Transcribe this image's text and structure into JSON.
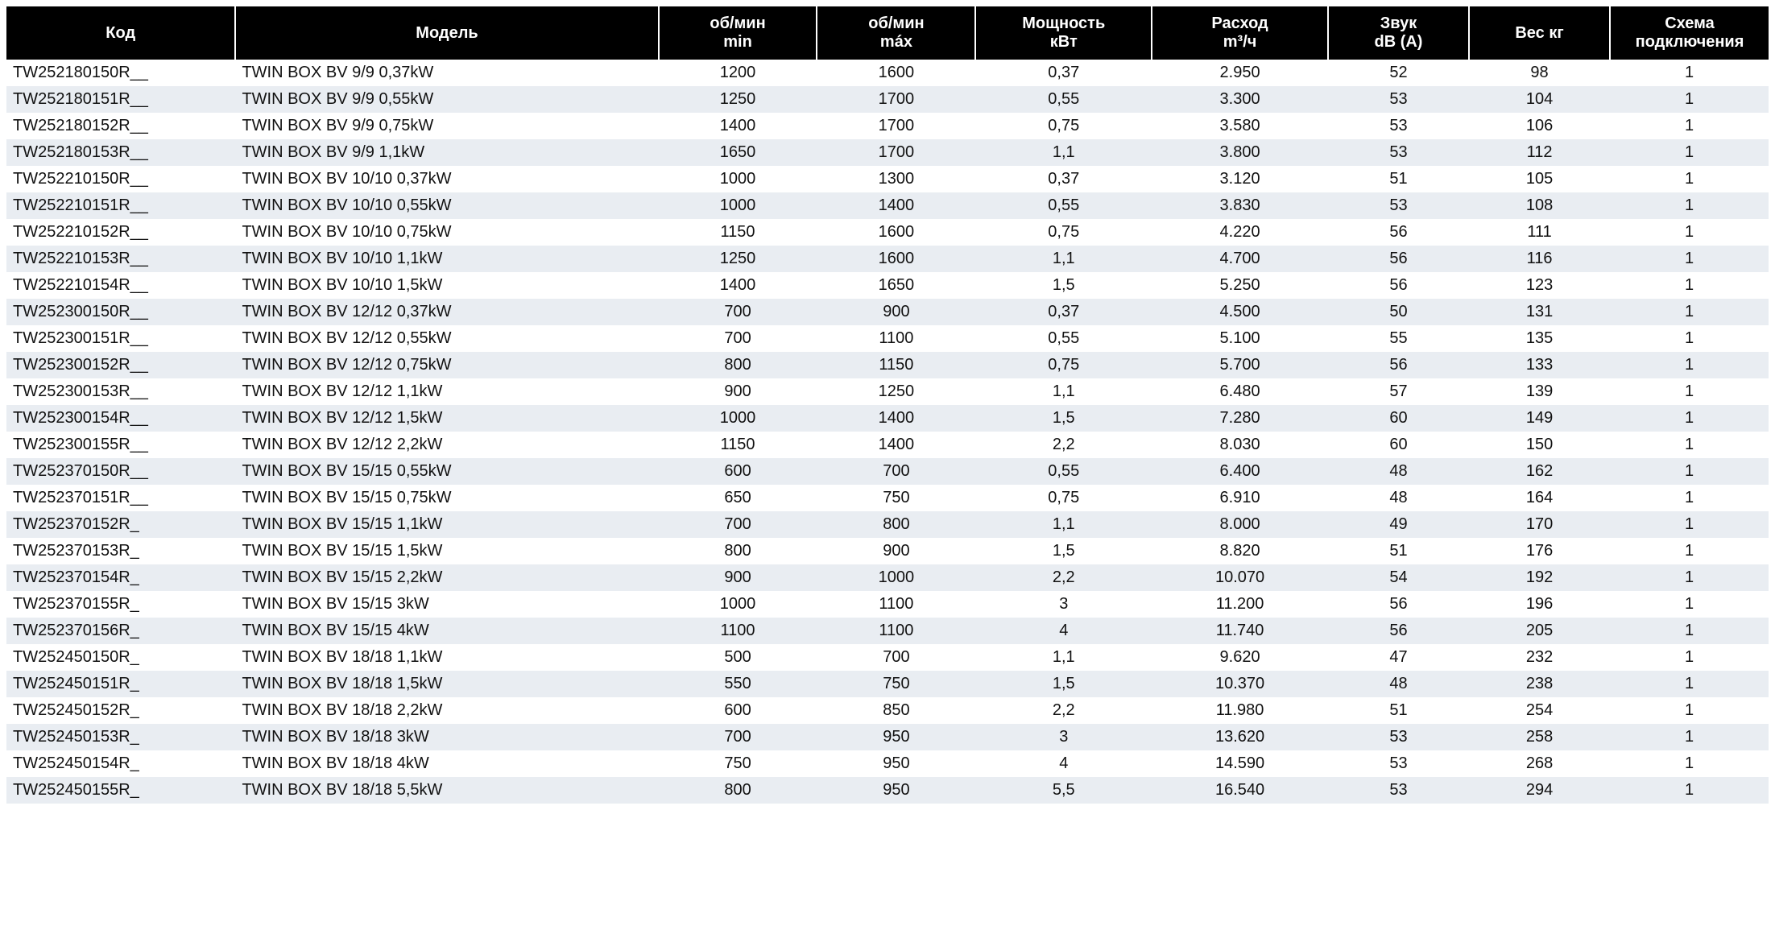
{
  "table": {
    "header_bg": "#000000",
    "header_fg": "#ffffff",
    "row_odd_bg": "#ffffff",
    "row_even_bg": "#e9edf2",
    "text_color": "#111111",
    "font_family": "Arial",
    "header_fontsize_pt": 15,
    "body_fontsize_pt": 15,
    "columns": [
      {
        "key": "code",
        "label": "Код",
        "align": "left",
        "width_pct": 13
      },
      {
        "key": "model",
        "label": "Модель",
        "align": "left",
        "width_pct": 24
      },
      {
        "key": "rpm_min",
        "label": "об/мин\nmin",
        "align": "center",
        "width_pct": 9
      },
      {
        "key": "rpm_max",
        "label": "об/мин\nmáx",
        "align": "center",
        "width_pct": 9
      },
      {
        "key": "power",
        "label": "Мощность\nкВт",
        "align": "center",
        "width_pct": 10
      },
      {
        "key": "flow",
        "label": "Расход\nm³/ч",
        "align": "center",
        "width_pct": 10
      },
      {
        "key": "sound",
        "label": "Звук\ndB (A)",
        "align": "center",
        "width_pct": 8
      },
      {
        "key": "weight",
        "label": "Вес кг",
        "align": "center",
        "width_pct": 8
      },
      {
        "key": "scheme",
        "label": "Схема\nподключения",
        "align": "center",
        "width_pct": 9
      }
    ],
    "rows": [
      {
        "code": "TW252180150R__",
        "model": "TWIN BOX BV 9/9 0,37kW",
        "rpm_min": "1200",
        "rpm_max": "1600",
        "power": "0,37",
        "flow": "2.950",
        "sound": "52",
        "weight": "98",
        "scheme": "1"
      },
      {
        "code": "TW252180151R__",
        "model": "TWIN BOX BV 9/9 0,55kW",
        "rpm_min": "1250",
        "rpm_max": "1700",
        "power": "0,55",
        "flow": "3.300",
        "sound": "53",
        "weight": "104",
        "scheme": "1"
      },
      {
        "code": "TW252180152R__",
        "model": "TWIN BOX BV 9/9 0,75kW",
        "rpm_min": "1400",
        "rpm_max": "1700",
        "power": "0,75",
        "flow": "3.580",
        "sound": "53",
        "weight": "106",
        "scheme": "1"
      },
      {
        "code": "TW252180153R__",
        "model": "TWIN BOX BV 9/9 1,1kW",
        "rpm_min": "1650",
        "rpm_max": "1700",
        "power": "1,1",
        "flow": "3.800",
        "sound": "53",
        "weight": "112",
        "scheme": "1"
      },
      {
        "code": "TW252210150R__",
        "model": "TWIN BOX BV 10/10 0,37kW",
        "rpm_min": "1000",
        "rpm_max": "1300",
        "power": "0,37",
        "flow": "3.120",
        "sound": "51",
        "weight": "105",
        "scheme": "1"
      },
      {
        "code": "TW252210151R__",
        "model": "TWIN BOX BV 10/10 0,55kW",
        "rpm_min": "1000",
        "rpm_max": "1400",
        "power": "0,55",
        "flow": "3.830",
        "sound": "53",
        "weight": "108",
        "scheme": "1"
      },
      {
        "code": "TW252210152R__",
        "model": "TWIN BOX BV 10/10 0,75kW",
        "rpm_min": "1150",
        "rpm_max": "1600",
        "power": "0,75",
        "flow": "4.220",
        "sound": "56",
        "weight": "111",
        "scheme": "1"
      },
      {
        "code": "TW252210153R__",
        "model": "TWIN BOX BV 10/10 1,1kW",
        "rpm_min": "1250",
        "rpm_max": "1600",
        "power": "1,1",
        "flow": "4.700",
        "sound": "56",
        "weight": "116",
        "scheme": "1"
      },
      {
        "code": "TW252210154R__",
        "model": "TWIN BOX BV 10/10 1,5kW",
        "rpm_min": "1400",
        "rpm_max": "1650",
        "power": "1,5",
        "flow": "5.250",
        "sound": "56",
        "weight": "123",
        "scheme": "1"
      },
      {
        "code": "TW252300150R__",
        "model": "TWIN BOX BV 12/12 0,37kW",
        "rpm_min": "700",
        "rpm_max": "900",
        "power": "0,37",
        "flow": "4.500",
        "sound": "50",
        "weight": "131",
        "scheme": "1"
      },
      {
        "code": "TW252300151R__",
        "model": "TWIN BOX BV 12/12 0,55kW",
        "rpm_min": "700",
        "rpm_max": "1100",
        "power": "0,55",
        "flow": "5.100",
        "sound": "55",
        "weight": "135",
        "scheme": "1"
      },
      {
        "code": "TW252300152R__",
        "model": "TWIN BOX BV 12/12 0,75kW",
        "rpm_min": "800",
        "rpm_max": "1150",
        "power": "0,75",
        "flow": "5.700",
        "sound": "56",
        "weight": "133",
        "scheme": "1"
      },
      {
        "code": "TW252300153R__",
        "model": "TWIN BOX BV 12/12 1,1kW",
        "rpm_min": "900",
        "rpm_max": "1250",
        "power": "1,1",
        "flow": "6.480",
        "sound": "57",
        "weight": "139",
        "scheme": "1"
      },
      {
        "code": "TW252300154R__",
        "model": "TWIN BOX BV 12/12 1,5kW",
        "rpm_min": "1000",
        "rpm_max": "1400",
        "power": "1,5",
        "flow": "7.280",
        "sound": "60",
        "weight": "149",
        "scheme": "1"
      },
      {
        "code": "TW252300155R__",
        "model": "TWIN BOX BV 12/12 2,2kW",
        "rpm_min": "1150",
        "rpm_max": "1400",
        "power": "2,2",
        "flow": "8.030",
        "sound": "60",
        "weight": "150",
        "scheme": "1"
      },
      {
        "code": "TW252370150R__",
        "model": "TWIN BOX BV 15/15 0,55kW",
        "rpm_min": "600",
        "rpm_max": "700",
        "power": "0,55",
        "flow": "6.400",
        "sound": "48",
        "weight": "162",
        "scheme": "1"
      },
      {
        "code": "TW252370151R__",
        "model": "TWIN BOX BV 15/15 0,75kW",
        "rpm_min": "650",
        "rpm_max": "750",
        "power": "0,75",
        "flow": "6.910",
        "sound": "48",
        "weight": "164",
        "scheme": "1"
      },
      {
        "code": "TW252370152R_",
        "model": "TWIN BOX BV 15/15 1,1kW",
        "rpm_min": "700",
        "rpm_max": "800",
        "power": "1,1",
        "flow": "8.000",
        "sound": "49",
        "weight": "170",
        "scheme": "1"
      },
      {
        "code": "TW252370153R_",
        "model": "TWIN BOX BV 15/15 1,5kW",
        "rpm_min": "800",
        "rpm_max": "900",
        "power": "1,5",
        "flow": "8.820",
        "sound": "51",
        "weight": "176",
        "scheme": "1"
      },
      {
        "code": "TW252370154R_",
        "model": "TWIN BOX BV 15/15 2,2kW",
        "rpm_min": "900",
        "rpm_max": "1000",
        "power": "2,2",
        "flow": "10.070",
        "sound": "54",
        "weight": "192",
        "scheme": "1"
      },
      {
        "code": "TW252370155R_",
        "model": "TWIN BOX BV 15/15 3kW",
        "rpm_min": "1000",
        "rpm_max": "1100",
        "power": "3",
        "flow": "11.200",
        "sound": "56",
        "weight": "196",
        "scheme": "1"
      },
      {
        "code": "TW252370156R_",
        "model": "TWIN BOX BV 15/15 4kW",
        "rpm_min": "1100",
        "rpm_max": "1100",
        "power": "4",
        "flow": "11.740",
        "sound": "56",
        "weight": "205",
        "scheme": "1"
      },
      {
        "code": "TW252450150R_",
        "model": "TWIN BOX BV 18/18 1,1kW",
        "rpm_min": "500",
        "rpm_max": "700",
        "power": "1,1",
        "flow": "9.620",
        "sound": "47",
        "weight": "232",
        "scheme": "1"
      },
      {
        "code": "TW252450151R_",
        "model": "TWIN BOX BV 18/18 1,5kW",
        "rpm_min": "550",
        "rpm_max": "750",
        "power": "1,5",
        "flow": "10.370",
        "sound": "48",
        "weight": "238",
        "scheme": "1"
      },
      {
        "code": "TW252450152R_",
        "model": "TWIN BOX BV 18/18 2,2kW",
        "rpm_min": "600",
        "rpm_max": "850",
        "power": "2,2",
        "flow": "11.980",
        "sound": "51",
        "weight": "254",
        "scheme": "1"
      },
      {
        "code": "TW252450153R_",
        "model": "TWIN BOX BV 18/18 3kW",
        "rpm_min": "700",
        "rpm_max": "950",
        "power": "3",
        "flow": "13.620",
        "sound": "53",
        "weight": "258",
        "scheme": "1"
      },
      {
        "code": "TW252450154R_",
        "model": "TWIN BOX BV 18/18 4kW",
        "rpm_min": "750",
        "rpm_max": "950",
        "power": "4",
        "flow": "14.590",
        "sound": "53",
        "weight": "268",
        "scheme": "1"
      },
      {
        "code": "TW252450155R_",
        "model": "TWIN BOX BV 18/18 5,5kW",
        "rpm_min": "800",
        "rpm_max": "950",
        "power": "5,5",
        "flow": "16.540",
        "sound": "53",
        "weight": "294",
        "scheme": "1"
      }
    ]
  }
}
